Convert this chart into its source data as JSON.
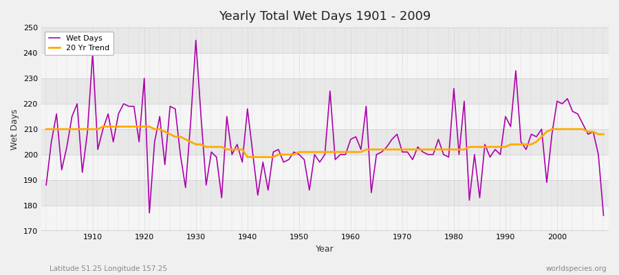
{
  "title": "Yearly Total Wet Days 1901 - 2009",
  "xlabel": "Year",
  "ylabel": "Wet Days",
  "subtitle": "Latitude 51.25 Longitude 157.25",
  "watermark": "worldspecies.org",
  "ylim": [
    170,
    250
  ],
  "yticks": [
    170,
    180,
    190,
    200,
    210,
    220,
    230,
    240,
    250
  ],
  "years": [
    1901,
    1902,
    1903,
    1904,
    1905,
    1906,
    1907,
    1908,
    1909,
    1910,
    1911,
    1912,
    1913,
    1914,
    1915,
    1916,
    1917,
    1918,
    1919,
    1920,
    1921,
    1922,
    1923,
    1924,
    1925,
    1926,
    1927,
    1928,
    1929,
    1930,
    1931,
    1932,
    1933,
    1934,
    1935,
    1936,
    1937,
    1938,
    1939,
    1940,
    1941,
    1942,
    1943,
    1944,
    1945,
    1946,
    1947,
    1948,
    1949,
    1950,
    1951,
    1952,
    1953,
    1954,
    1955,
    1956,
    1957,
    1958,
    1959,
    1960,
    1961,
    1962,
    1963,
    1964,
    1965,
    1966,
    1967,
    1968,
    1969,
    1970,
    1971,
    1972,
    1973,
    1974,
    1975,
    1976,
    1977,
    1978,
    1979,
    1980,
    1981,
    1982,
    1983,
    1984,
    1985,
    1986,
    1987,
    1988,
    1989,
    1990,
    1991,
    1992,
    1993,
    1994,
    1995,
    1996,
    1997,
    1998,
    1999,
    2000,
    2001,
    2002,
    2003,
    2004,
    2005,
    2006,
    2007,
    2008,
    2009
  ],
  "wet_days": [
    188,
    205,
    216,
    194,
    203,
    215,
    220,
    193,
    209,
    240,
    202,
    210,
    216,
    205,
    216,
    220,
    219,
    219,
    205,
    230,
    177,
    205,
    215,
    196,
    219,
    218,
    200,
    187,
    213,
    245,
    215,
    188,
    201,
    199,
    183,
    215,
    200,
    204,
    197,
    218,
    201,
    184,
    197,
    186,
    201,
    202,
    197,
    198,
    201,
    200,
    198,
    186,
    200,
    197,
    200,
    225,
    198,
    200,
    200,
    206,
    207,
    202,
    219,
    185,
    200,
    201,
    203,
    206,
    208,
    201,
    201,
    198,
    203,
    201,
    200,
    200,
    206,
    200,
    199,
    226,
    200,
    221,
    182,
    200,
    183,
    204,
    199,
    202,
    200,
    215,
    211,
    233,
    205,
    202,
    208,
    207,
    210,
    189,
    208,
    221,
    220,
    222,
    217,
    216,
    212,
    208,
    209,
    200,
    176
  ],
  "trend": [
    210,
    210,
    210,
    210,
    210,
    210,
    210,
    210,
    210,
    210,
    210,
    211,
    211,
    211,
    211,
    211,
    211,
    211,
    211,
    211,
    211,
    210,
    210,
    209,
    208,
    207,
    207,
    206,
    205,
    204,
    204,
    203,
    203,
    203,
    203,
    202,
    202,
    202,
    202,
    199,
    199,
    199,
    199,
    199,
    199,
    200,
    200,
    200,
    200,
    201,
    201,
    201,
    201,
    201,
    201,
    201,
    201,
    201,
    201,
    201,
    201,
    201,
    202,
    202,
    202,
    202,
    202,
    202,
    202,
    202,
    202,
    202,
    202,
    202,
    202,
    202,
    202,
    202,
    202,
    202,
    202,
    202,
    203,
    203,
    203,
    203,
    203,
    203,
    203,
    203,
    204,
    204,
    204,
    204,
    204,
    205,
    207,
    209,
    210,
    210,
    210,
    210,
    210,
    210,
    210,
    209,
    209,
    208,
    208
  ],
  "wet_days_color": "#aa00aa",
  "trend_color": "#ffaa00",
  "background_color": "#f0f0f0",
  "band_color_light": "#f5f5f5",
  "band_color_dark": "#e8e8e8",
  "grid_color": "#cccccc",
  "legend_wet": "Wet Days",
  "legend_trend": "20 Yr Trend"
}
